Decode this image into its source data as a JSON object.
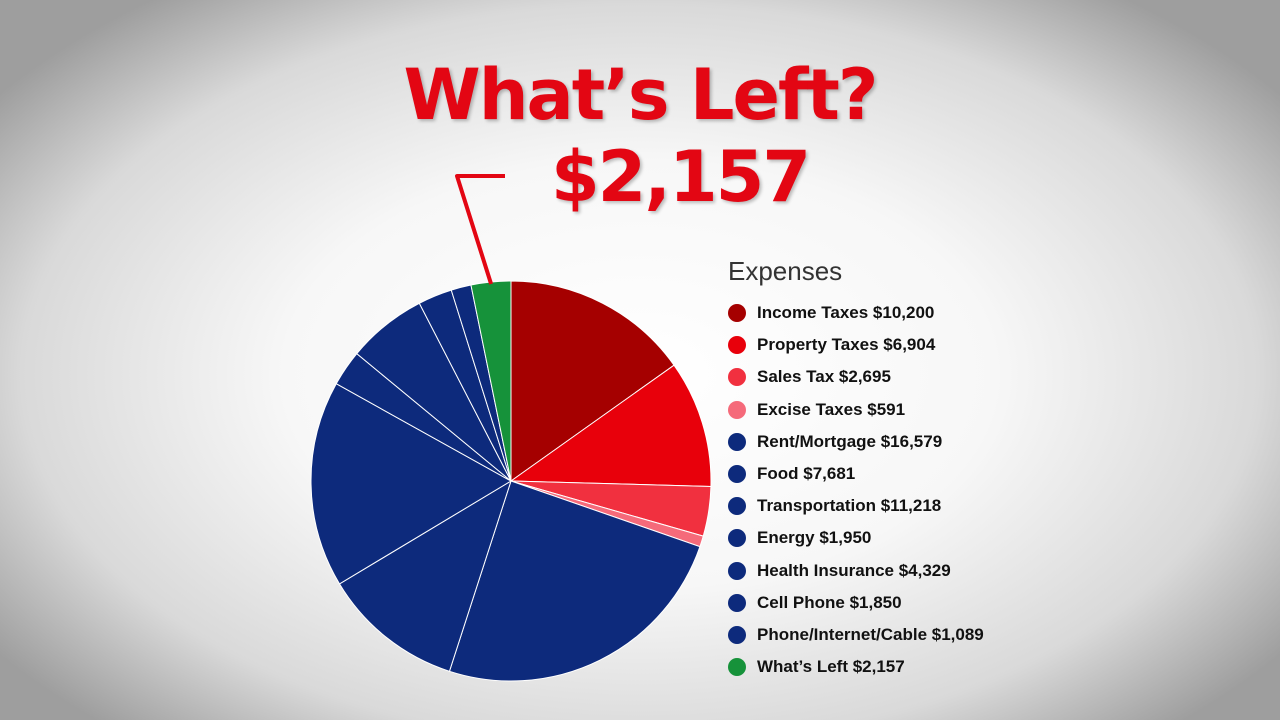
{
  "heading": {
    "title": "What’s Left?",
    "value": "$2,157"
  },
  "chart_data": {
    "type": "pie",
    "legend_title": "Expenses",
    "legend_position": "right",
    "slices": [
      {
        "label": "Income Taxes $10,200",
        "value": 10200,
        "color": "#a50000"
      },
      {
        "label": "Property Taxes $6,904",
        "value": 6904,
        "color": "#e8000b"
      },
      {
        "label": "Sales Tax $2,695",
        "value": 2695,
        "color": "#f1303f"
      },
      {
        "label": "Excise Taxes $591",
        "value": 591,
        "color": "#f56a7a"
      },
      {
        "label": "Rent/Mortgage $16,579",
        "value": 16579,
        "color": "#0d2a7c"
      },
      {
        "label": "Food $7,681",
        "value": 7681,
        "color": "#0d2a7c"
      },
      {
        "label": "Transportation $11,218",
        "value": 11218,
        "color": "#0d2a7c"
      },
      {
        "label": "Energy $1,950",
        "value": 1950,
        "color": "#0d2a7c"
      },
      {
        "label": "Health Insurance $4,329",
        "value": 4329,
        "color": "#0d2a7c"
      },
      {
        "label": "Cell Phone $1,850",
        "value": 1850,
        "color": "#0d2a7c"
      },
      {
        "label": "Phone/Internet/Cable $1,089",
        "value": 1089,
        "color": "#0d2a7c"
      },
      {
        "label": "What’s Left $2,157",
        "value": 2157,
        "color": "#16923a"
      }
    ],
    "highlight_color": "#e30613"
  }
}
